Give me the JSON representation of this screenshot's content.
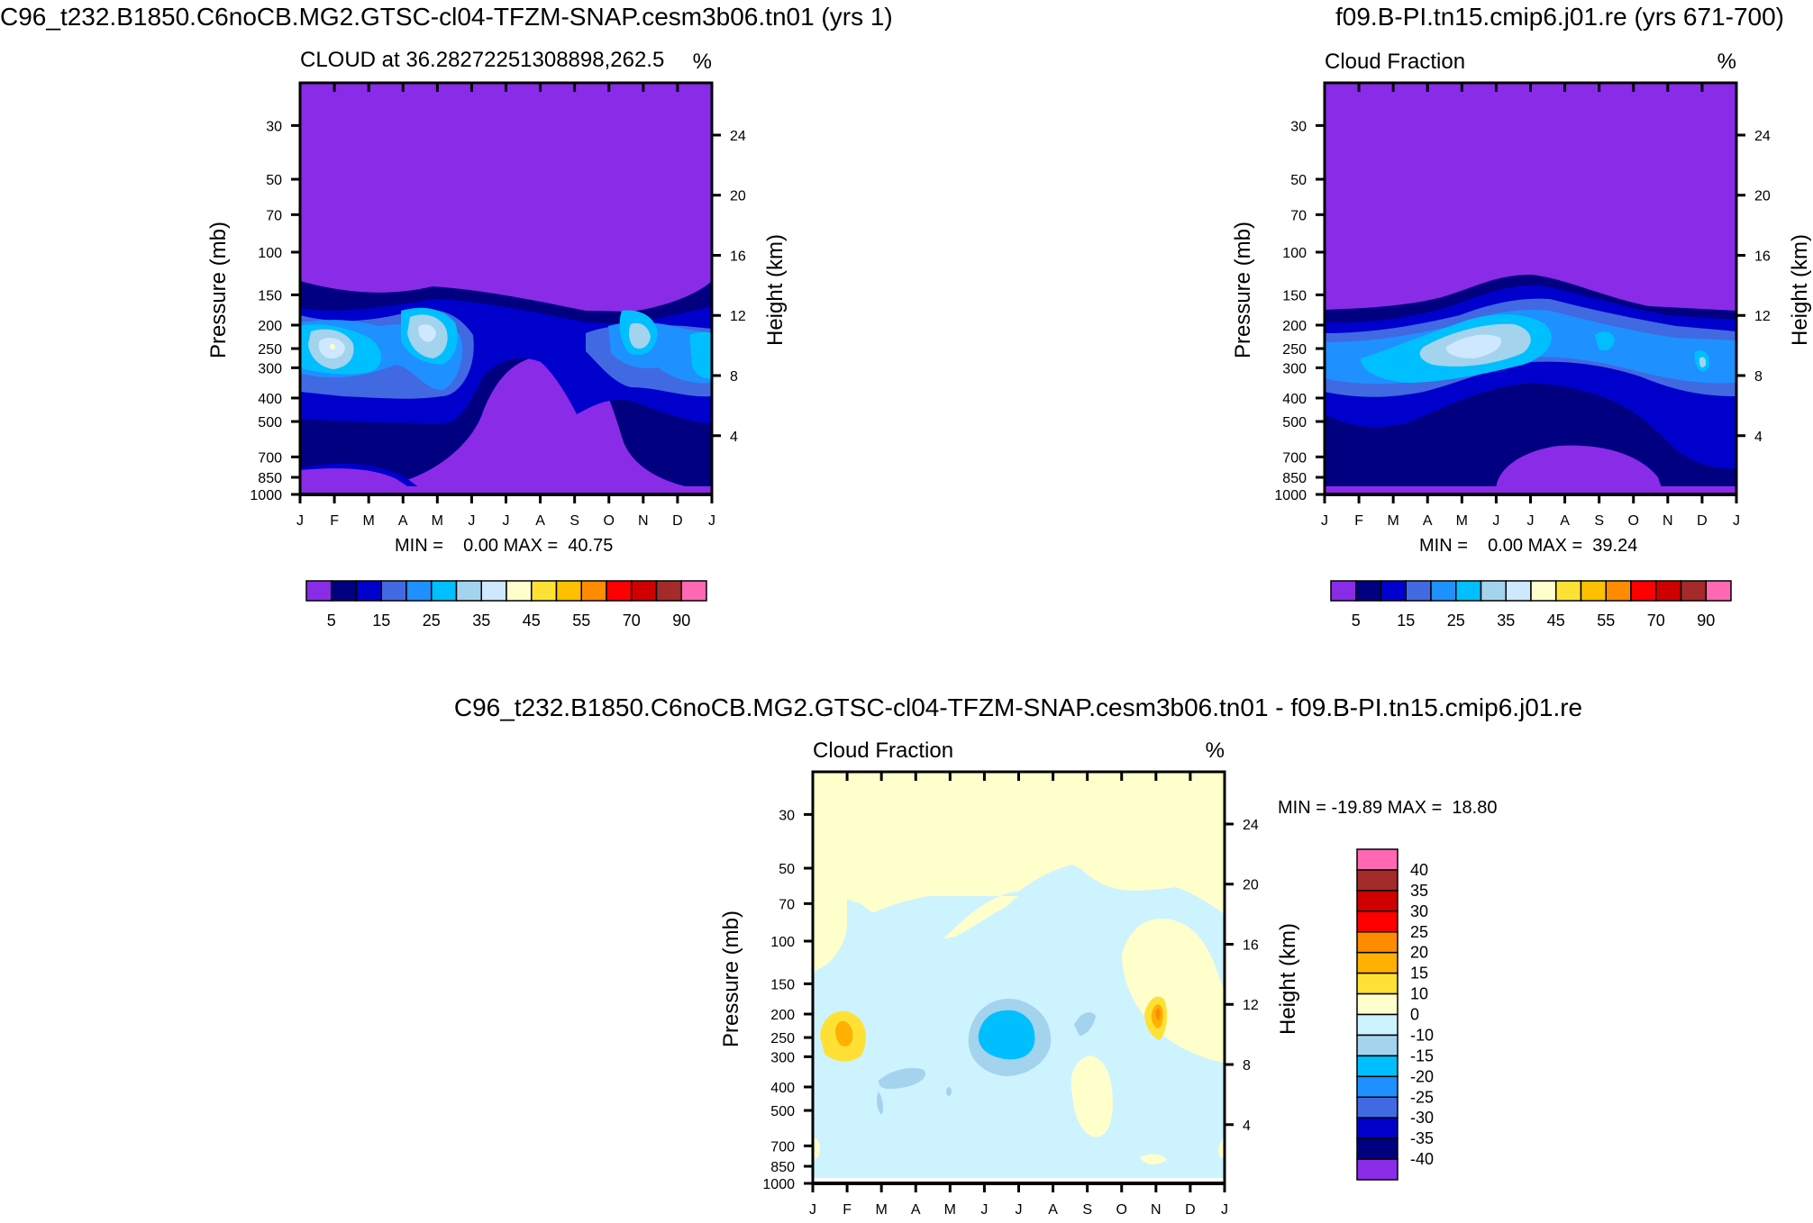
{
  "chart_data": [
    {
      "type": "heatmap",
      "case_title": "C96_t232.B1850.C6noCB.MG2.GTSC-cl04-TFZM-SNAP.cesm3b06.tn01 (yrs 1)",
      "title": "CLOUD at 36.28272251308898,262.5",
      "units": "%",
      "ylabel": "Pressure (mb)",
      "ylabel_right": "Height (km)",
      "months": [
        "J",
        "F",
        "M",
        "A",
        "M",
        "J",
        "J",
        "A",
        "S",
        "O",
        "N",
        "D",
        "J"
      ],
      "pressure_ticks": [
        "30",
        "50",
        "70",
        "100",
        "150",
        "200",
        "250",
        "300",
        "400",
        "500",
        "700",
        "850",
        "1000"
      ],
      "height_ticks": [
        "24",
        "20",
        "16",
        "12",
        "8",
        "4"
      ],
      "stats": "MIN =    0.00 MAX =  40.75",
      "colorbar_labels": [
        "5",
        "15",
        "25",
        "35",
        "45",
        "55",
        "70",
        "90"
      ]
    },
    {
      "type": "heatmap",
      "case_title": "f09.B-PI.tn15.cmip6.j01.re (yrs 671-700)",
      "title": "Cloud Fraction",
      "units": "%",
      "ylabel": "Pressure (mb)",
      "ylabel_right": "Height (km)",
      "months": [
        "J",
        "F",
        "M",
        "A",
        "M",
        "J",
        "J",
        "A",
        "S",
        "O",
        "N",
        "D",
        "J"
      ],
      "pressure_ticks": [
        "30",
        "50",
        "70",
        "100",
        "150",
        "200",
        "250",
        "300",
        "400",
        "500",
        "700",
        "850",
        "1000"
      ],
      "height_ticks": [
        "24",
        "20",
        "16",
        "12",
        "8",
        "4"
      ],
      "stats": "MIN =    0.00 MAX =  39.24",
      "colorbar_labels": [
        "5",
        "15",
        "25",
        "35",
        "45",
        "55",
        "70",
        "90"
      ]
    },
    {
      "type": "heatmap",
      "case_title": "C96_t232.B1850.C6noCB.MG2.GTSC-cl04-TFZM-SNAP.cesm3b06.tn01 - f09.B-PI.tn15.cmip6.j01.re",
      "title": "Cloud Fraction",
      "units": "%",
      "ylabel": "Pressure (mb)",
      "ylabel_right": "Height (km)",
      "months": [
        "J",
        "F",
        "M",
        "A",
        "M",
        "J",
        "J",
        "A",
        "S",
        "O",
        "N",
        "D",
        "J"
      ],
      "pressure_ticks": [
        "30",
        "50",
        "70",
        "100",
        "150",
        "200",
        "250",
        "300",
        "400",
        "500",
        "700",
        "850",
        "1000"
      ],
      "height_ticks": [
        "24",
        "20",
        "16",
        "12",
        "8",
        "4"
      ],
      "stats": "MIN = -19.89 MAX =  18.80",
      "colorbar_labels": [
        "40",
        "35",
        "30",
        "25",
        "20",
        "15",
        "10",
        "0",
        "-10",
        "-15",
        "-20",
        "-25",
        "-30",
        "-35",
        "-40"
      ]
    }
  ],
  "colors": {
    "abs_palette": [
      "#8a2be8",
      "#000080",
      "#0000cd",
      "#4169e1",
      "#1e90ff",
      "#00bfff",
      "#a4d3ee",
      "#cde8ff",
      "#ffffcc",
      "#ffe135",
      "#ffc000",
      "#ff8c00",
      "#ff0000",
      "#d00000",
      "#a52a2a",
      "#ff69b4"
    ],
    "diff_palette": [
      "#ff69b4",
      "#a52a2a",
      "#d00000",
      "#ff0000",
      "#ff8c00",
      "#ffb000",
      "#ffe135",
      "#ffffcc",
      "#cdf3ff",
      "#a4d3ee",
      "#00bfff",
      "#1e90ff",
      "#4169e1",
      "#0000cd",
      "#000080",
      "#8a2be8"
    ]
  }
}
